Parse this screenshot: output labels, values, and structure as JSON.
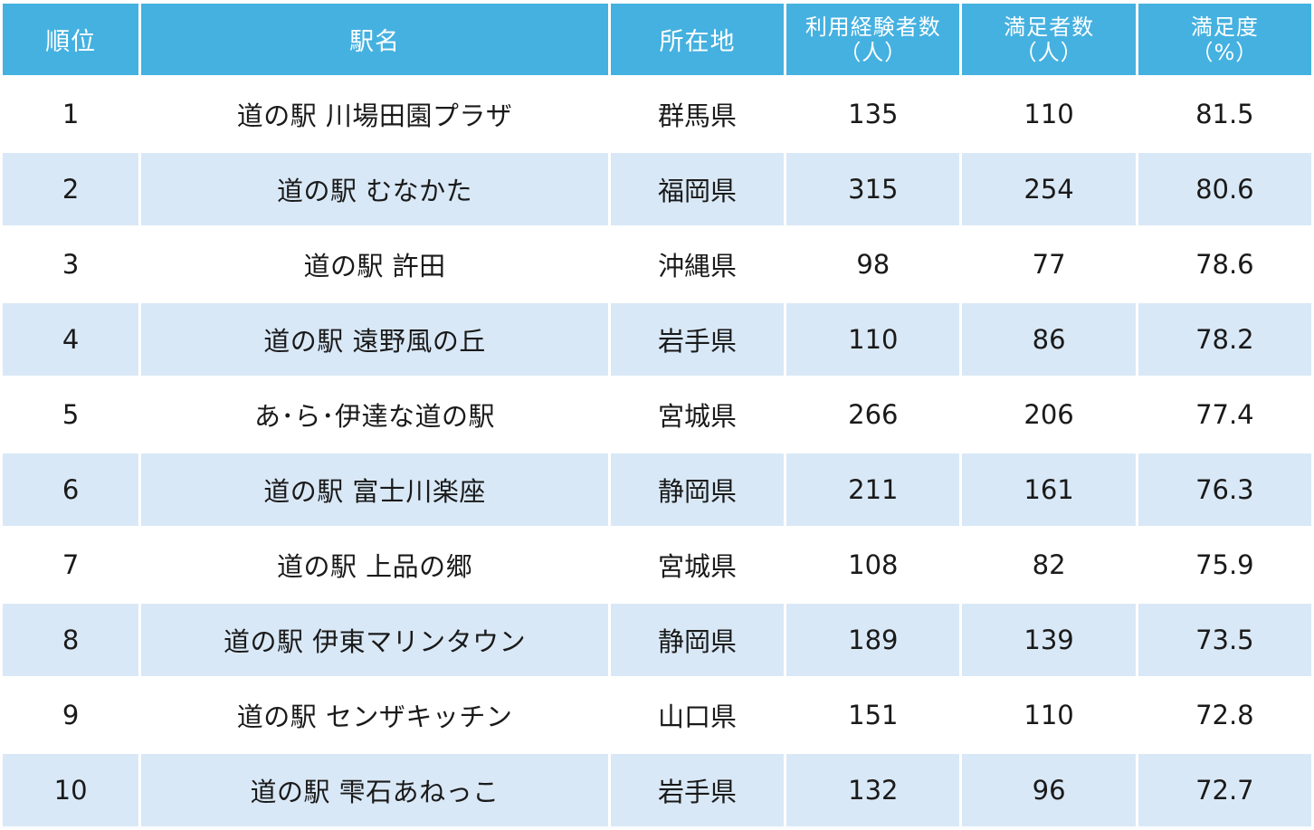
{
  "headers": {
    "rank": "順位",
    "name": "駅名",
    "prefecture": "所在地",
    "users_line1": "利用経験者数",
    "users_line2": "（人）",
    "satisfied_line1": "満足者数",
    "satisfied_line2": "（人）",
    "rate_line1": "満足度",
    "rate_line2": "（%）"
  },
  "rows": [
    {
      "rank": "1",
      "name": "道の駅 川場田園プラザ",
      "prefecture": "群馬県",
      "users": "135",
      "satisfied": "110",
      "rate": "81.5"
    },
    {
      "rank": "2",
      "name": "道の駅 むなかた",
      "prefecture": "福岡県",
      "users": "315",
      "satisfied": "254",
      "rate": "80.6"
    },
    {
      "rank": "3",
      "name": "道の駅 許田",
      "prefecture": "沖縄県",
      "users": "98",
      "satisfied": "77",
      "rate": "78.6"
    },
    {
      "rank": "4",
      "name": "道の駅 遠野風の丘",
      "prefecture": "岩手県",
      "users": "110",
      "satisfied": "86",
      "rate": "78.2"
    },
    {
      "rank": "5",
      "name": "あ･ら･伊達な道の駅",
      "prefecture": "宮城県",
      "users": "266",
      "satisfied": "206",
      "rate": "77.4"
    },
    {
      "rank": "6",
      "name": "道の駅 富士川楽座",
      "prefecture": "静岡県",
      "users": "211",
      "satisfied": "161",
      "rate": "76.3"
    },
    {
      "rank": "7",
      "name": "道の駅 上品の郷",
      "prefecture": "宮城県",
      "users": "108",
      "satisfied": "82",
      "rate": "75.9"
    },
    {
      "rank": "8",
      "name": "道の駅 伊東マリンタウン",
      "prefecture": "静岡県",
      "users": "189",
      "satisfied": "139",
      "rate": "73.5"
    },
    {
      "rank": "9",
      "name": "道の駅 センザキッチン",
      "prefecture": "山口県",
      "users": "151",
      "satisfied": "110",
      "rate": "72.8"
    },
    {
      "rank": "10",
      "name": "道の駅 雫石あねっこ",
      "prefecture": "岩手県",
      "users": "132",
      "satisfied": "96",
      "rate": "72.7"
    }
  ],
  "colors": {
    "header_bg": "#45b1e0",
    "header_text": "#ffffff",
    "stripe_bg": "#d9e8f6",
    "row_bg": "#ffffff"
  }
}
